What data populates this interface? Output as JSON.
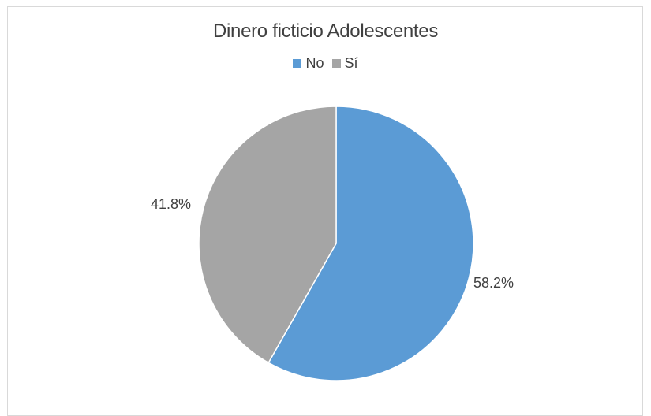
{
  "chart_data": {
    "type": "pie",
    "title": "Dinero ficticio Adolescentes",
    "categories": [
      "No",
      "Sí"
    ],
    "values": [
      58.2,
      41.8
    ],
    "data_labels": [
      "58.2%",
      "41.8%"
    ],
    "colors": [
      "#5b9bd5",
      "#a5a5a5"
    ],
    "legend_position": "top"
  }
}
